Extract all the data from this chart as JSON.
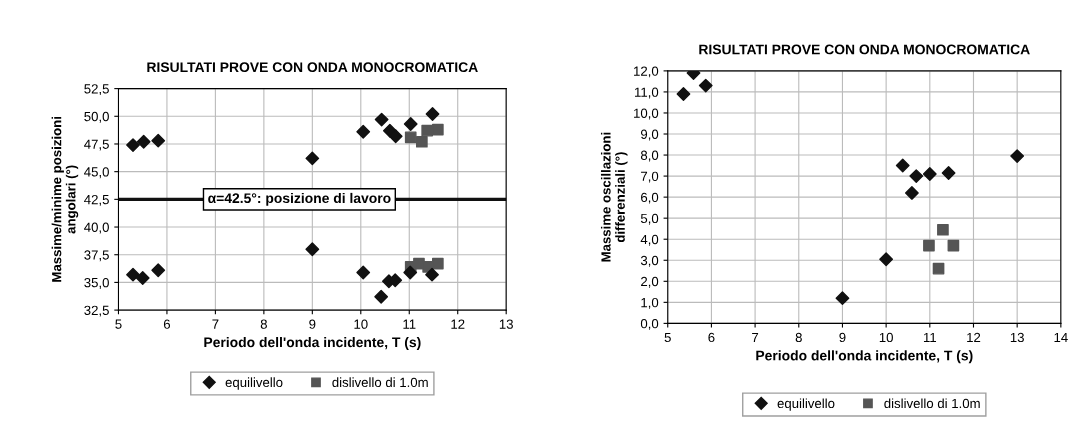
{
  "chart_data": [
    {
      "type": "scatter",
      "title": "RISULTATI PROVE CON ONDA MONOCROMATICA",
      "xlabel": "Periodo dell'onda incidente, T (s)",
      "ylabel": "Massime/minime posizioni\nangolari (°)",
      "series": [
        {
          "name": "equilivello",
          "color": "#111111",
          "marker": "diamond",
          "x": [
            5.3,
            5.52,
            5.82,
            9.0,
            10.05,
            10.43,
            10.6,
            10.72,
            11.03,
            11.48,
            5.3,
            5.5,
            5.82,
            9.0,
            10.05,
            10.42,
            10.58,
            10.71,
            11.02,
            11.47
          ],
          "values": [
            47.4,
            47.7,
            47.8,
            46.2,
            48.6,
            49.7,
            48.7,
            48.2,
            49.3,
            50.2,
            35.7,
            35.4,
            36.1,
            38.0,
            35.9,
            33.7,
            35.1,
            35.2,
            35.9,
            35.7
          ]
        },
        {
          "name": "dislivello di 1.0m",
          "color": "#555555",
          "marker": "square",
          "x": [
            11.03,
            11.26,
            11.37,
            11.59,
            11.03,
            11.2,
            11.39,
            11.59
          ],
          "values": [
            48.1,
            47.7,
            48.7,
            48.8,
            36.4,
            36.7,
            36.4,
            36.7
          ]
        }
      ],
      "xlim": [
        5,
        13
      ],
      "xticks": [
        5,
        6,
        7,
        8,
        9,
        10,
        11,
        12,
        13
      ],
      "ylim": [
        32.5,
        52.5
      ],
      "yticks": [
        {
          "value": 32.5,
          "label": "32,5"
        },
        {
          "value": 35,
          "label": "35,0"
        },
        {
          "value": 37.5,
          "label": "37,5"
        },
        {
          "value": 40,
          "label": "40,0"
        },
        {
          "value": 42.5,
          "label": "42,5"
        },
        {
          "value": 45,
          "label": "45,0"
        },
        {
          "value": 47.5,
          "label": "47,5"
        },
        {
          "value": 50,
          "label": "50,0"
        },
        {
          "value": 52.5,
          "label": "52,5"
        }
      ],
      "ref_lines": [
        {
          "axis": "y",
          "value": 42.5,
          "label": "α=42.5°: posizione di lavoro",
          "color": "#111111"
        }
      ],
      "grid": true,
      "legend": "bottom"
    },
    {
      "type": "scatter",
      "title": "RISULTATI PROVE CON ONDA MONOCROMATICA",
      "xlabel": "Periodo dell'onda incidente, T (s)",
      "ylabel": "Massime oscillazioni\ndifferenziali (°)",
      "series": [
        {
          "name": "equilivello",
          "color": "#111111",
          "marker": "diamond",
          "x": [
            5.36,
            5.59,
            5.87,
            9.0,
            10.0,
            10.38,
            10.69,
            10.59,
            11.0,
            11.43,
            13.0
          ],
          "values": [
            10.9,
            11.9,
            11.3,
            1.2,
            3.05,
            7.5,
            7.0,
            6.2,
            7.1,
            7.15,
            7.95
          ]
        },
        {
          "name": "dislivello di 1.0m",
          "color": "#555555",
          "marker": "square",
          "x": [
            11.3,
            10.98,
            11.54,
            11.2
          ],
          "values": [
            4.45,
            3.7,
            3.7,
            2.6
          ]
        }
      ],
      "xlim": [
        5,
        14
      ],
      "xticks": [
        5,
        6,
        7,
        8,
        9,
        10,
        11,
        12,
        13,
        14
      ],
      "ylim": [
        0,
        12
      ],
      "yticks": [
        {
          "value": 0,
          "label": "0,0"
        },
        {
          "value": 1,
          "label": "1,0"
        },
        {
          "value": 2,
          "label": "2,0"
        },
        {
          "value": 3,
          "label": "3,0"
        },
        {
          "value": 4,
          "label": "4,0"
        },
        {
          "value": 5,
          "label": "5,0"
        },
        {
          "value": 6,
          "label": "6,0"
        },
        {
          "value": 7,
          "label": "7,0"
        },
        {
          "value": 8,
          "label": "8,0"
        },
        {
          "value": 9,
          "label": "9,0"
        },
        {
          "value": 10,
          "label": "10,0"
        },
        {
          "value": 11,
          "label": "11,0"
        },
        {
          "value": 12,
          "label": "12,0"
        }
      ],
      "grid": true,
      "legend": "bottom"
    }
  ]
}
